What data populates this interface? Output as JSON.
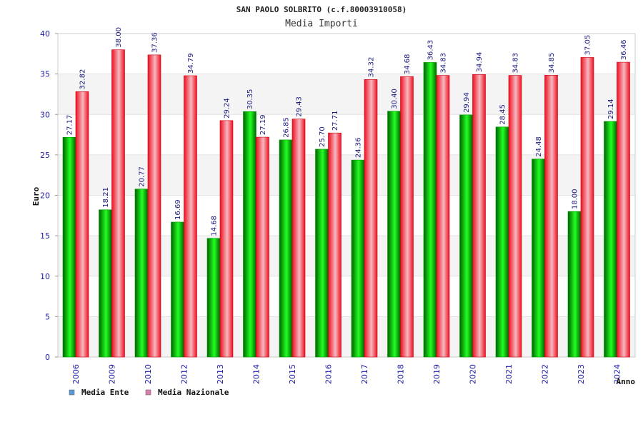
{
  "chart_data": {
    "type": "bar",
    "title": "SAN PAOLO SOLBRITO (c.f.80003910058)",
    "subtitle": "Media Importi",
    "xlabel": "Anno",
    "ylabel": "Euro",
    "ylim": [
      0,
      40
    ],
    "yticks": [
      0,
      5,
      10,
      15,
      20,
      25,
      30,
      35,
      40
    ],
    "grid": true,
    "legend_position": "bottom-left",
    "categories": [
      "2006",
      "2009",
      "2010",
      "2012",
      "2013",
      "2014",
      "2015",
      "2016",
      "2017",
      "2018",
      "2019",
      "2020",
      "2021",
      "2022",
      "2023",
      "2024"
    ],
    "series": [
      {
        "name": "Media Ente",
        "color": "#00b300",
        "legend_color": "#5b9bd5",
        "values": [
          27.17,
          18.21,
          20.77,
          16.69,
          14.68,
          30.35,
          26.85,
          25.7,
          24.36,
          30.4,
          36.43,
          29.94,
          28.45,
          24.48,
          18.0,
          29.14
        ],
        "labels": [
          "27.17",
          "18.21",
          "20.77",
          "16.69",
          "14.68",
          "30.35",
          "26.85",
          "25.70",
          "24.36",
          "30.40",
          "36.43",
          "29.94",
          "28.45",
          "24.48",
          "18.00",
          "29.14"
        ]
      },
      {
        "name": "Media Nazionale",
        "color": "#e8001c",
        "legend_color": "#d97fb0",
        "values": [
          32.82,
          38.0,
          37.36,
          34.79,
          29.24,
          27.19,
          29.43,
          27.71,
          34.32,
          34.68,
          34.83,
          34.94,
          34.83,
          34.85,
          37.05,
          36.46
        ],
        "labels": [
          "32.82",
          "38.00",
          "37.36",
          "34.79",
          "29.24",
          "27.19",
          "29.43",
          "27.71",
          "34.32",
          "34.68",
          "34.83",
          "34.94",
          "34.83",
          "34.85",
          "37.05",
          "36.46"
        ]
      }
    ]
  }
}
